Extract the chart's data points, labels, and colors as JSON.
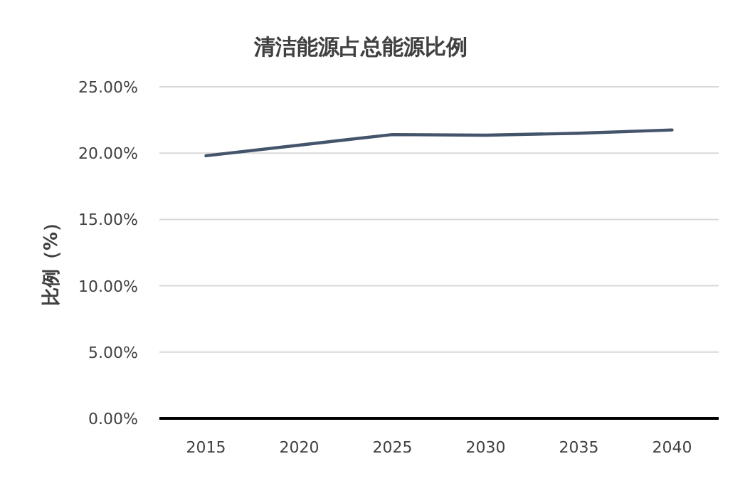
{
  "chart_data": {
    "type": "line",
    "title": "清洁能源占总能源比例",
    "ylabel": "比例（%）",
    "categories": [
      "2015",
      "2020",
      "2025",
      "2030",
      "2035",
      "2040"
    ],
    "series": [
      {
        "color": "#44546a",
        "values": [
          19.8,
          20.6,
          21.4,
          21.35,
          21.5,
          21.75
        ]
      }
    ],
    "ylim": [
      0,
      25
    ],
    "yticks": [
      {
        "value": 0,
        "label": "0.00%"
      },
      {
        "value": 5,
        "label": "5.00%"
      },
      {
        "value": 10,
        "label": "10.00%"
      },
      {
        "value": 15,
        "label": "15.00%"
      },
      {
        "value": 20,
        "label": "20.00%"
      },
      {
        "value": 25,
        "label": "25.00%"
      }
    ],
    "grid": "y",
    "legend": false,
    "marker": "none",
    "line_style": "solid"
  }
}
